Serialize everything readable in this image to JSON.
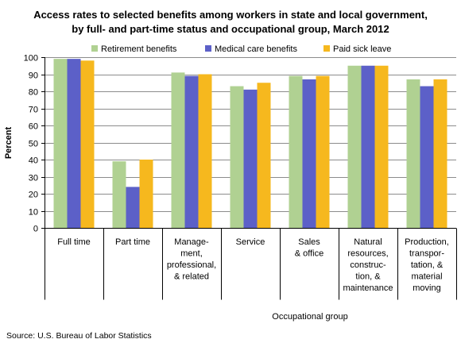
{
  "chart_data": {
    "type": "bar",
    "title": [
      "Access rates to selected benefits among workers in state and local government,",
      "by full- and part-time status and occupational group, March 2012"
    ],
    "ylabel": "Percent",
    "ylim": [
      0,
      100
    ],
    "yticks": [
      0,
      10,
      20,
      30,
      40,
      50,
      60,
      70,
      80,
      90,
      100
    ],
    "grid": true,
    "legend_position": "top",
    "categories": [
      [
        "Full time"
      ],
      [
        "Part time"
      ],
      [
        "Manage-",
        "ment,",
        "professional,",
        "& related"
      ],
      [
        "Service"
      ],
      [
        "Sales",
        "& office"
      ],
      [
        "Natural",
        "resources,",
        "construc-",
        "tion, &",
        "maintenance"
      ],
      [
        "Production,",
        "transpor-",
        "tation, &",
        "material",
        "moving"
      ]
    ],
    "group_label": "Occupational group",
    "series": [
      {
        "name": "Retirement benefits",
        "color": "#b0d192",
        "values": [
          99,
          39,
          91,
          83,
          89,
          95,
          87
        ]
      },
      {
        "name": "Medical care benefits",
        "color": "#5c60c8",
        "values": [
          99,
          24,
          89,
          81,
          87,
          95,
          83
        ]
      },
      {
        "name": "Paid sick leave",
        "color": "#f6b81e",
        "values": [
          98,
          40,
          90,
          85,
          89,
          95,
          87
        ]
      }
    ],
    "source": "Source: U.S. Bureau of Labor Statistics"
  }
}
